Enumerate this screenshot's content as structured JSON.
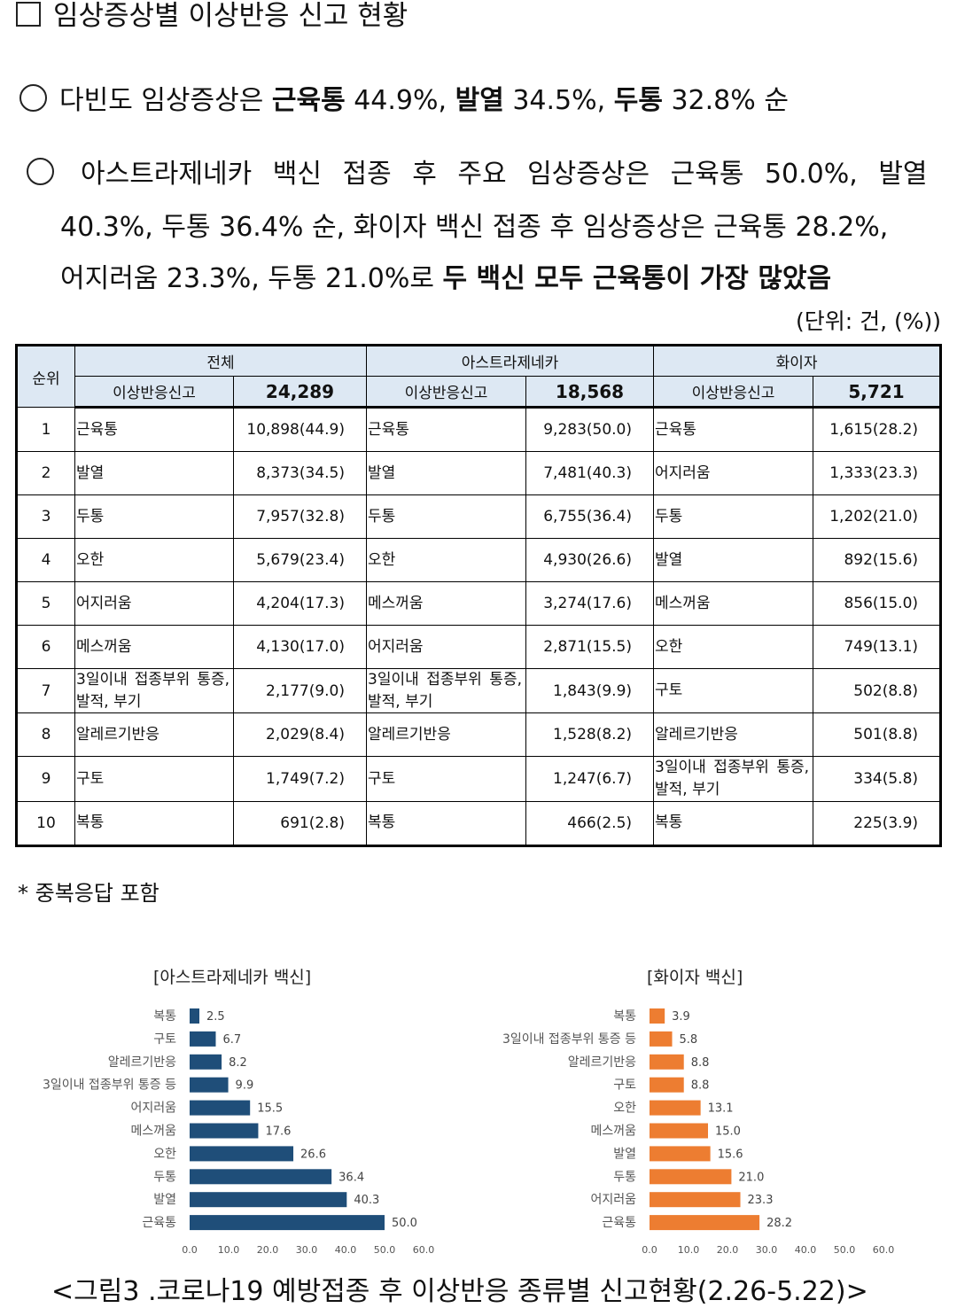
{
  "title": "임상증상별 이상반응 신고 현황",
  "bullet1": {
    "t1": "다빈도 임상증상은 ",
    "b1": "근육통",
    "t2": " 44.9%, ",
    "b2": "발열",
    "t3": " 34.5%, ",
    "b3": "두통",
    "t4": " 32.8% 순"
  },
  "bullet2": {
    "line1": "아스트라제네카 백신 접종 후 주요 임상증상은 근육통 50.0%, 발열",
    "line2": "40.3%, 두통 36.4% 순, 화이자 백신 접종 후 임상증상은 근육통 28.2%,",
    "line3_normal": "어지러움 23.3%, 두통 21.0%로 ",
    "line3_bold": "두 백신 모두 근육통이 가장 많았음"
  },
  "unit": "(단위: 건, (%))",
  "table": {
    "rank_header": "순위",
    "groups": [
      {
        "name": "전체",
        "label": "이상반응신고",
        "total": "24,289"
      },
      {
        "name": "아스트라제네카",
        "label": "이상반응신고",
        "total": "18,568"
      },
      {
        "name": "화이자",
        "label": "이상반응신고",
        "total": "5,721"
      }
    ],
    "rows": [
      {
        "rank": "1",
        "cells": [
          [
            "근육통",
            "10,898(44.9)"
          ],
          [
            "근육통",
            "9,283(50.0)"
          ],
          [
            "근육통",
            "1,615(28.2)"
          ]
        ]
      },
      {
        "rank": "2",
        "cells": [
          [
            "발열",
            "8,373(34.5)"
          ],
          [
            "발열",
            "7,481(40.3)"
          ],
          [
            "어지러움",
            "1,333(23.3)"
          ]
        ]
      },
      {
        "rank": "3",
        "cells": [
          [
            "두통",
            "7,957(32.8)"
          ],
          [
            "두통",
            "6,755(36.4)"
          ],
          [
            "두통",
            "1,202(21.0)"
          ]
        ]
      },
      {
        "rank": "4",
        "cells": [
          [
            "오한",
            "5,679(23.4)"
          ],
          [
            "오한",
            "4,930(26.6)"
          ],
          [
            "발열",
            "892(15.6)"
          ]
        ]
      },
      {
        "rank": "5",
        "cells": [
          [
            "어지러움",
            "4,204(17.3)"
          ],
          [
            "메스꺼움",
            "3,274(17.6)"
          ],
          [
            "메스꺼움",
            "856(15.0)"
          ]
        ]
      },
      {
        "rank": "6",
        "cells": [
          [
            "메스꺼움",
            "4,130(17.0)"
          ],
          [
            "어지러움",
            "2,871(15.5)"
          ],
          [
            "오한",
            "749(13.1)"
          ]
        ]
      },
      {
        "rank": "7",
        "cells": [
          [
            "3일이내 접종부위 통증, 발적, 부기",
            "2,177(9.0)"
          ],
          [
            "3일이내 접종부위 통증, 발적, 부기",
            "1,843(9.9)"
          ],
          [
            "구토",
            "502(8.8)"
          ]
        ]
      },
      {
        "rank": "8",
        "cells": [
          [
            "알레르기반응",
            "2,029(8.4)"
          ],
          [
            "알레르기반응",
            "1,528(8.2)"
          ],
          [
            "알레르기반응",
            "501(8.8)"
          ]
        ]
      },
      {
        "rank": "9",
        "cells": [
          [
            "구토",
            "1,749(7.2)"
          ],
          [
            "구토",
            "1,247(6.7)"
          ],
          [
            "3일이내 접종부위 통증, 발적, 부기",
            "334(5.8)"
          ]
        ]
      },
      {
        "rank": "10",
        "cells": [
          [
            "복통",
            "691(2.8)"
          ],
          [
            "복통",
            "466(2.5)"
          ],
          [
            "복통",
            "225(3.9)"
          ]
        ]
      }
    ]
  },
  "footnote": "* 중복응답 포함",
  "chart_data": [
    {
      "type": "bar",
      "orientation": "horizontal",
      "title": "[아스트라제네카 백신]",
      "color": "#1f4e79",
      "categories": [
        "복통",
        "구토",
        "알레르기반응",
        "3일이내 접종부위 통증 등",
        "어지러움",
        "메스꺼움",
        "오한",
        "두통",
        "발열",
        "근육통"
      ],
      "values": [
        2.5,
        6.7,
        8.2,
        9.9,
        15.5,
        17.6,
        26.6,
        36.4,
        40.3,
        50.0
      ],
      "value_labels": [
        "2.5",
        "6.7",
        "8.2",
        "9.9",
        "15.5",
        "17.6",
        "26.6",
        "36.4",
        "40.3",
        "50.0"
      ],
      "xlim": [
        0,
        60
      ],
      "xticks": [
        "0.0",
        "10.0",
        "20.0",
        "30.0",
        "40.0",
        "50.0",
        "60.0"
      ]
    },
    {
      "type": "bar",
      "orientation": "horizontal",
      "title": "[화이자 백신]",
      "color": "#ed7d31",
      "categories": [
        "복통",
        "3일이내 접종부위 통증 등",
        "알레르기반응",
        "구토",
        "오한",
        "메스꺼움",
        "발열",
        "두통",
        "어지러움",
        "근육통"
      ],
      "values": [
        3.9,
        5.8,
        8.8,
        8.8,
        13.1,
        15.0,
        15.6,
        21.0,
        23.3,
        28.2
      ],
      "value_labels": [
        "3.9",
        "5.8",
        "8.8",
        "8.8",
        "13.1",
        "15.0",
        "15.6",
        "21.0",
        "23.3",
        "28.2"
      ],
      "xlim": [
        0,
        60
      ],
      "xticks": [
        "0.0",
        "10.0",
        "20.0",
        "30.0",
        "40.0",
        "50.0",
        "60.0"
      ]
    }
  ],
  "caption": "<그림3 .코로나19 예방접종 후 이상반응 종류별 신고현황(2.26-5.22)>"
}
